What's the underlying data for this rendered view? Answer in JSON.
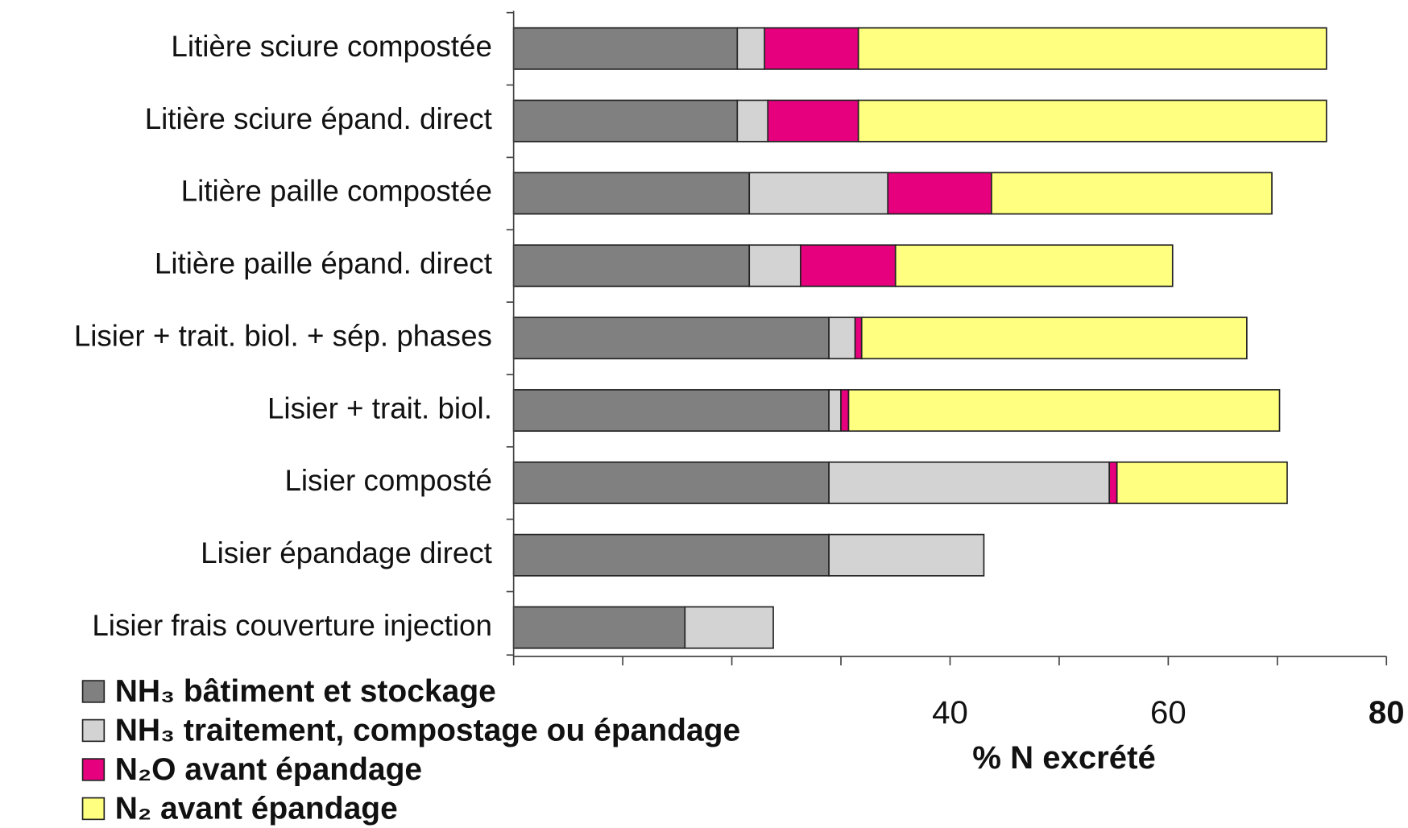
{
  "chart_data": {
    "type": "stacked_barh",
    "categories": [
      "Litière sciure compostée",
      "Litière sciure épand. direct",
      "Litière paille compostée",
      "Litière paille épand. direct",
      "Lisier + trait. biol. + sép. phases",
      "Lisier + trait. biol.",
      "Lisier composté",
      "Lisier épandage direct",
      "Lisier frais couverture injection"
    ],
    "series": [
      {
        "name": "NH₃ bâtiment et stockage",
        "color": "#808080",
        "values": [
          20.5,
          20.5,
          21.6,
          21.6,
          28.9,
          28.9,
          28.9,
          28.9,
          15.7
        ]
      },
      {
        "name": "NH₃ traitement, compostage ou épandage",
        "color": "#d3d3d3",
        "values": [
          2.5,
          2.8,
          12.7,
          4.7,
          2.4,
          1.1,
          25.7,
          14.2,
          8.1
        ]
      },
      {
        "name": "N₂O avant épandage",
        "color": "#e6007e",
        "values": [
          8.6,
          8.3,
          9.5,
          8.7,
          0.6,
          0.7,
          0.7,
          null,
          null
        ]
      },
      {
        "name": "N₂ avant épandage",
        "color": "#ffff80",
        "values": [
          42.9,
          42.9,
          25.7,
          25.4,
          35.3,
          39.5,
          15.6,
          null,
          null
        ]
      }
    ],
    "xlabel": "% N excrété",
    "xlim": [
      0,
      80
    ],
    "xticks": [
      40,
      60,
      80
    ],
    "minor_xticks": [
      0,
      10,
      20,
      30,
      50,
      70
    ]
  }
}
